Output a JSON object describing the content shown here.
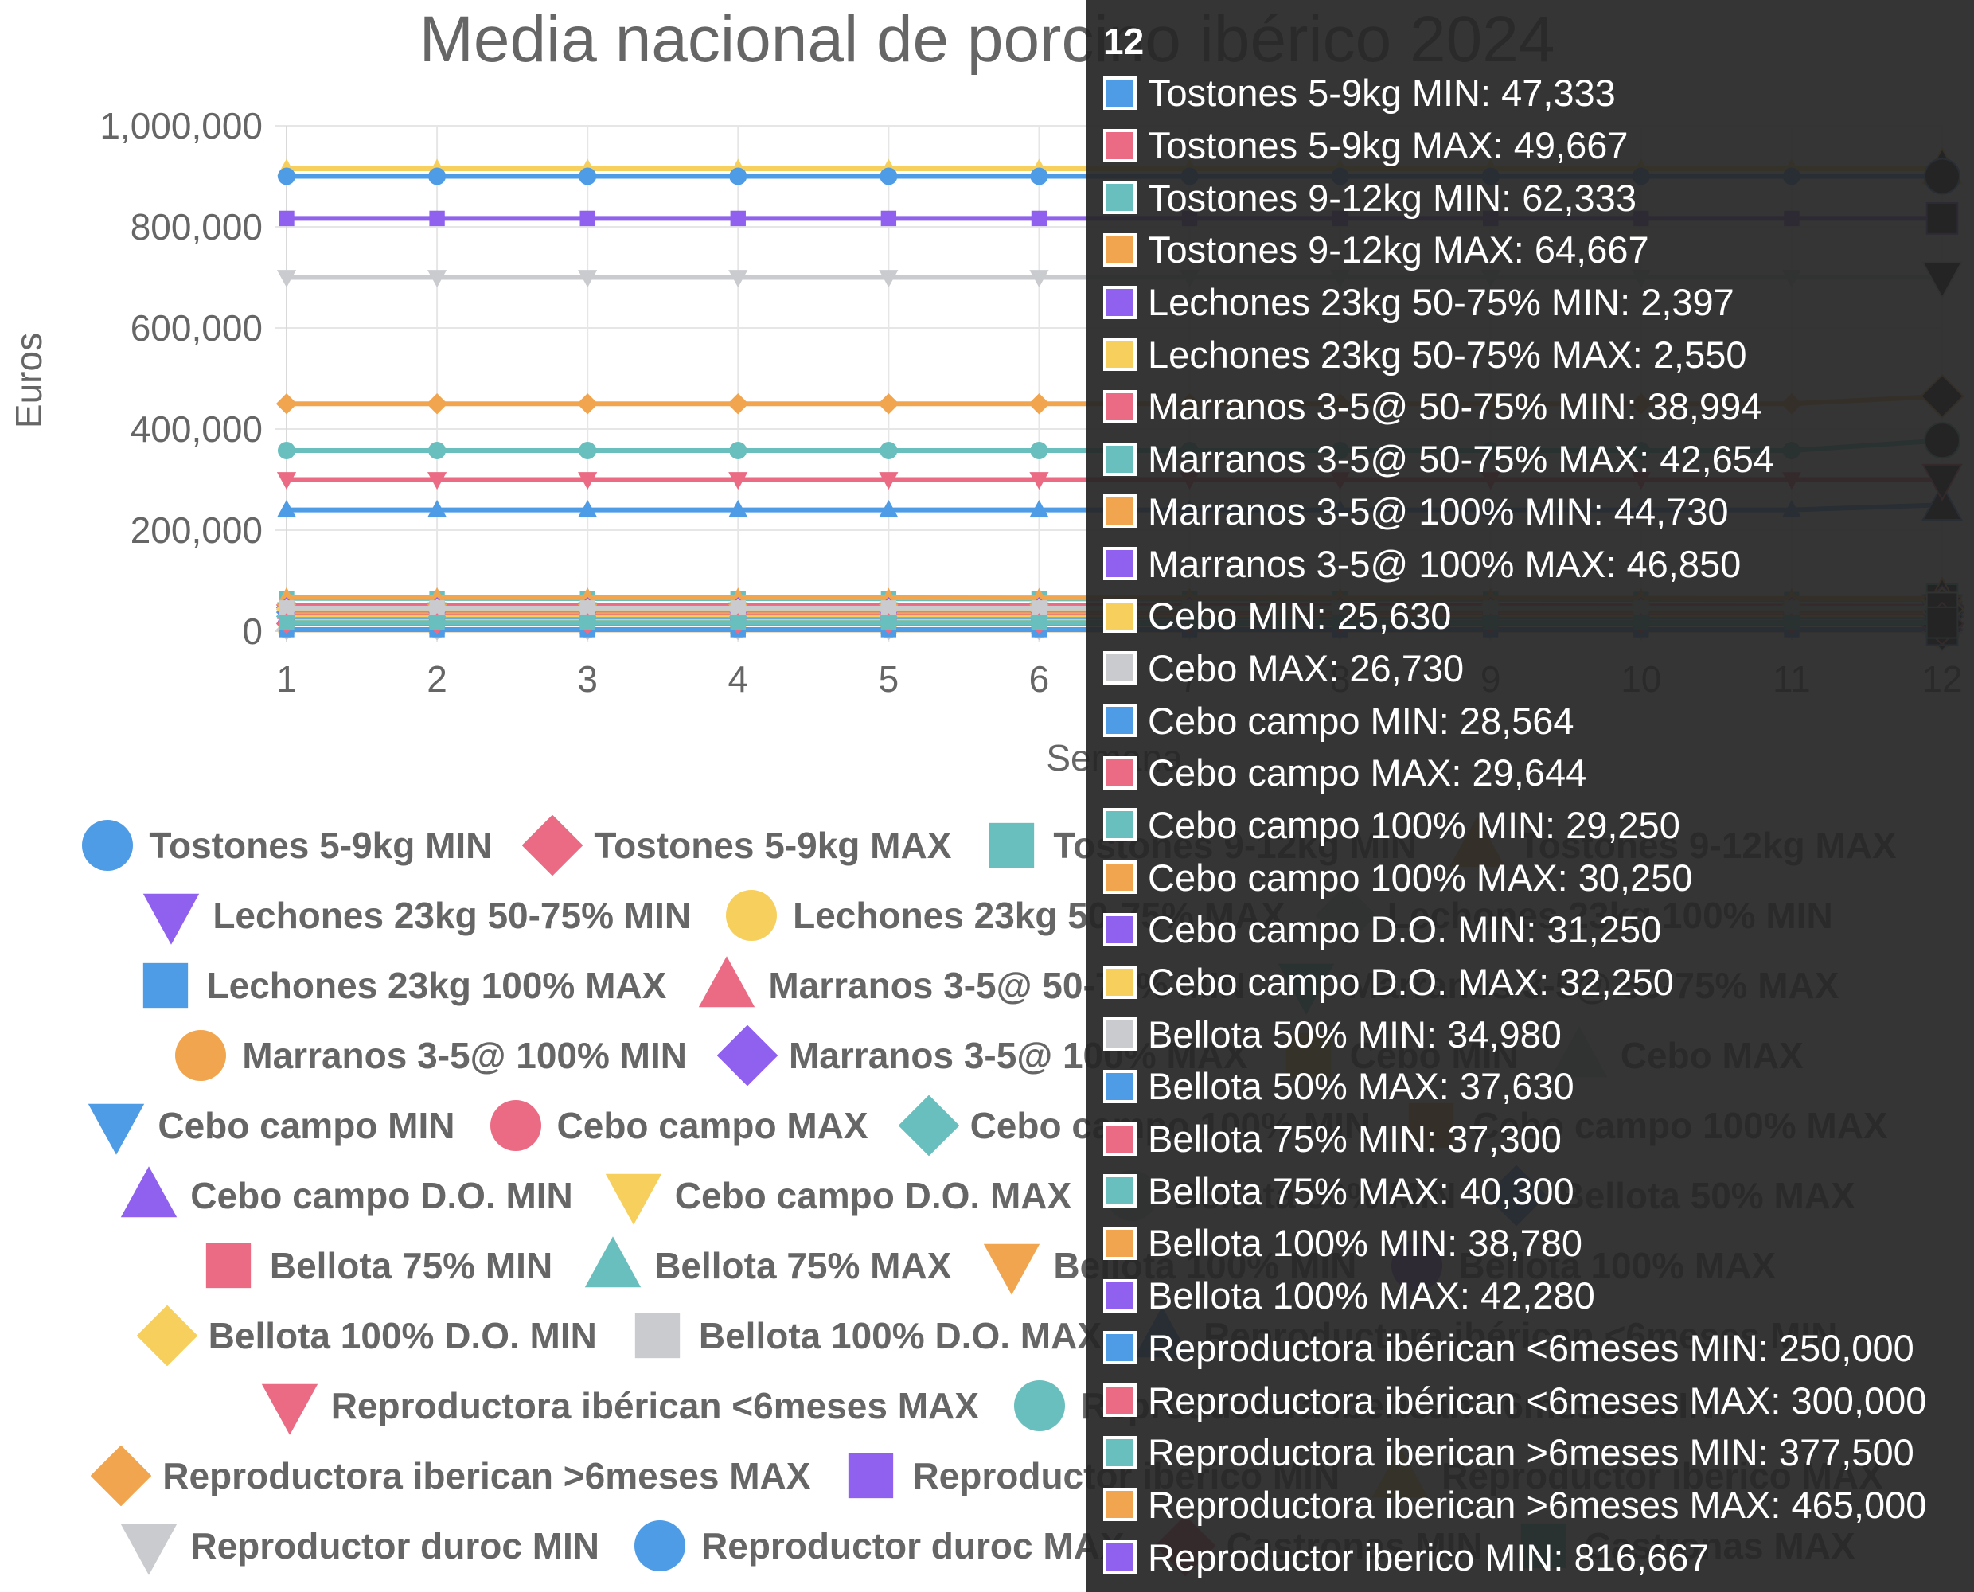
{
  "chart_data": {
    "type": "line",
    "title": "Media nacional de porcino ibérico 2024",
    "xlabel": "Semana",
    "ylabel": "Euros",
    "x": [
      1,
      2,
      3,
      4,
      5,
      6,
      7,
      8,
      9,
      10,
      11,
      12
    ],
    "xticks": [
      "1",
      "2",
      "3",
      "4",
      "5",
      "6",
      "7",
      "8",
      "9",
      "10",
      "11",
      "12"
    ],
    "ylim": [
      0,
      1000000
    ],
    "yticks": [
      "0",
      "200,000",
      "400,000",
      "600,000",
      "800,000",
      "1,000,000"
    ],
    "grid": true,
    "legend_position": "bottom",
    "series": [
      {
        "name": "Tostones 5-9kg MIN",
        "color": "#4E9BE6",
        "marker": "circle",
        "values": [
          50000,
          49800,
          49600,
          49400,
          49200,
          49000,
          48800,
          48600,
          48300,
          48000,
          47700,
          47333
        ]
      },
      {
        "name": "Tostones 5-9kg MAX",
        "color": "#EB6B84",
        "marker": "rectRot",
        "values": [
          52000,
          51800,
          51600,
          51400,
          51200,
          51000,
          50800,
          50600,
          50400,
          50200,
          49900,
          49667
        ]
      },
      {
        "name": "Tostones 9-12kg MIN",
        "color": "#69BFBE",
        "marker": "rect",
        "values": [
          65000,
          64800,
          64600,
          64400,
          64200,
          64000,
          63800,
          63500,
          63200,
          62900,
          62600,
          62333
        ]
      },
      {
        "name": "Tostones 9-12kg MAX",
        "color": "#F2A54F",
        "marker": "triangle",
        "values": [
          67000,
          66800,
          66600,
          66400,
          66200,
          66000,
          65800,
          65600,
          65400,
          65100,
          64900,
          64667
        ]
      },
      {
        "name": "Lechones 23kg 50-75% MIN",
        "color": "#8F61EE",
        "marker": "triangleDown",
        "values": [
          2397,
          2397,
          2397,
          2397,
          2397,
          2397,
          2397,
          2397,
          2397,
          2397,
          2397,
          2397
        ]
      },
      {
        "name": "Lechones 23kg 50-75% MAX",
        "color": "#F7CF5C",
        "marker": "circle",
        "values": [
          2550,
          2550,
          2550,
          2550,
          2550,
          2550,
          2550,
          2550,
          2550,
          2550,
          2550,
          2550
        ]
      },
      {
        "name": "Lechones 23kg 100% MIN",
        "color": "#C9CBCF",
        "marker": "rectRot",
        "values": [
          3000,
          3000,
          3000,
          3000,
          3000,
          3000,
          3000,
          3000,
          3000,
          3000,
          3000,
          3000
        ]
      },
      {
        "name": "Lechones 23kg 100% MAX",
        "color": "#4E9BE6",
        "marker": "rect",
        "values": [
          3200,
          3200,
          3200,
          3200,
          3200,
          3200,
          3200,
          3200,
          3200,
          3200,
          3200,
          3200
        ]
      },
      {
        "name": "Marranos 3-5@ 50-75% MIN",
        "color": "#EB6B84",
        "marker": "triangle",
        "values": [
          38994,
          38994,
          38994,
          38994,
          38994,
          38994,
          38994,
          38994,
          38994,
          38994,
          38994,
          38994
        ]
      },
      {
        "name": "Marranos 3-5@ 50-75% MAX",
        "color": "#69BFBE",
        "marker": "triangleDown",
        "values": [
          42654,
          42654,
          42654,
          42654,
          42654,
          42654,
          42654,
          42654,
          42654,
          42654,
          42654,
          42654
        ]
      },
      {
        "name": "Marranos 3-5@ 100% MIN",
        "color": "#F2A54F",
        "marker": "circle",
        "values": [
          44730,
          44730,
          44730,
          44730,
          44730,
          44730,
          44730,
          44730,
          44730,
          44730,
          44730,
          44730
        ]
      },
      {
        "name": "Marranos 3-5@ 100% MAX",
        "color": "#8F61EE",
        "marker": "rectRot",
        "values": [
          46850,
          46850,
          46850,
          46850,
          46850,
          46850,
          46850,
          46850,
          46850,
          46850,
          46850,
          46850
        ]
      },
      {
        "name": "Cebo MIN",
        "color": "#F7CF5C",
        "marker": "rect",
        "values": [
          25630,
          25630,
          25630,
          25630,
          25630,
          25630,
          25630,
          25630,
          25630,
          25630,
          25630,
          25630
        ]
      },
      {
        "name": "Cebo MAX",
        "color": "#C9CBCF",
        "marker": "triangle",
        "values": [
          26730,
          26730,
          26730,
          26730,
          26730,
          26730,
          26730,
          26730,
          26730,
          26730,
          26730,
          26730
        ]
      },
      {
        "name": "Cebo campo MIN",
        "color": "#4E9BE6",
        "marker": "triangleDown",
        "values": [
          28564,
          28564,
          28564,
          28564,
          28564,
          28564,
          28564,
          28564,
          28564,
          28564,
          28564,
          28564
        ]
      },
      {
        "name": "Cebo campo MAX",
        "color": "#EB6B84",
        "marker": "circle",
        "values": [
          29644,
          29644,
          29644,
          29644,
          29644,
          29644,
          29644,
          29644,
          29644,
          29644,
          29644,
          29644
        ]
      },
      {
        "name": "Cebo campo 100% MIN",
        "color": "#69BFBE",
        "marker": "rectRot",
        "values": [
          29250,
          29250,
          29250,
          29250,
          29250,
          29250,
          29250,
          29250,
          29250,
          29250,
          29250,
          29250
        ]
      },
      {
        "name": "Cebo campo 100% MAX",
        "color": "#F2A54F",
        "marker": "rect",
        "values": [
          30250,
          30250,
          30250,
          30250,
          30250,
          30250,
          30250,
          30250,
          30250,
          30250,
          30250,
          30250
        ]
      },
      {
        "name": "Cebo campo D.O. MIN",
        "color": "#8F61EE",
        "marker": "triangle",
        "values": [
          31250,
          31250,
          31250,
          31250,
          31250,
          31250,
          31250,
          31250,
          31250,
          31250,
          31250,
          31250
        ]
      },
      {
        "name": "Cebo campo D.O. MAX",
        "color": "#F7CF5C",
        "marker": "triangleDown",
        "values": [
          32250,
          32250,
          32250,
          32250,
          32250,
          32250,
          32250,
          32250,
          32250,
          32250,
          32250,
          32250
        ]
      },
      {
        "name": "Bellota 50% MIN",
        "color": "#C9CBCF",
        "marker": "circle",
        "values": [
          34980,
          34980,
          34980,
          34980,
          34980,
          34980,
          34980,
          34980,
          34980,
          34980,
          34980,
          34980
        ]
      },
      {
        "name": "Bellota 50% MAX",
        "color": "#4E9BE6",
        "marker": "rectRot",
        "values": [
          37630,
          37630,
          37630,
          37630,
          37630,
          37630,
          37630,
          37630,
          37630,
          37630,
          37630,
          37630
        ]
      },
      {
        "name": "Bellota 75% MIN",
        "color": "#EB6B84",
        "marker": "rect",
        "values": [
          37300,
          37300,
          37300,
          37300,
          37300,
          37300,
          37300,
          37300,
          37300,
          37300,
          37300,
          37300
        ]
      },
      {
        "name": "Bellota 75% MAX",
        "color": "#69BFBE",
        "marker": "triangle",
        "values": [
          40300,
          40300,
          40300,
          40300,
          40300,
          40300,
          40300,
          40300,
          40300,
          40300,
          40300,
          40300
        ]
      },
      {
        "name": "Bellota 100% MIN",
        "color": "#F2A54F",
        "marker": "triangleDown",
        "values": [
          38780,
          38780,
          38780,
          38780,
          38780,
          38780,
          38780,
          38780,
          38780,
          38780,
          38780,
          38780
        ]
      },
      {
        "name": "Bellota 100% MAX",
        "color": "#8F61EE",
        "marker": "circle",
        "values": [
          42280,
          42280,
          42280,
          42280,
          42280,
          42280,
          42280,
          42280,
          42280,
          42280,
          42280,
          42280
        ]
      },
      {
        "name": "Bellota 100% D.O. MIN",
        "color": "#F7CF5C",
        "marker": "rectRot",
        "values": [
          43500,
          43500,
          43500,
          43500,
          43500,
          43500,
          43500,
          43500,
          43500,
          43500,
          43500,
          43500
        ]
      },
      {
        "name": "Bellota 100% D.O. MAX",
        "color": "#C9CBCF",
        "marker": "rect",
        "values": [
          46000,
          46000,
          46000,
          46000,
          46000,
          46000,
          46000,
          46000,
          46000,
          46000,
          46000,
          46000
        ]
      },
      {
        "name": "Reproductora ibérican  <6meses MIN",
        "color": "#4E9BE6",
        "marker": "triangle",
        "values": [
          240000,
          240000,
          240000,
          240000,
          240000,
          240000,
          240000,
          240000,
          240000,
          240000,
          240000,
          250000
        ]
      },
      {
        "name": "Reproductora ibérican  <6meses MAX",
        "color": "#EB6B84",
        "marker": "triangleDown",
        "values": [
          300000,
          300000,
          300000,
          300000,
          300000,
          300000,
          300000,
          300000,
          300000,
          300000,
          300000,
          300000
        ]
      },
      {
        "name": "Reproductora iberican  >6meses MIN",
        "color": "#69BFBE",
        "marker": "circle",
        "values": [
          357500,
          357500,
          357500,
          357500,
          357500,
          357500,
          357500,
          357500,
          357500,
          357500,
          357500,
          377500
        ]
      },
      {
        "name": "Reproductora iberican  >6meses MAX",
        "color": "#F2A54F",
        "marker": "rectRot",
        "values": [
          450000,
          450000,
          450000,
          450000,
          450000,
          450000,
          450000,
          450000,
          450000,
          450000,
          450000,
          465000
        ]
      },
      {
        "name": "Reproductor iberico MIN",
        "color": "#8F61EE",
        "marker": "rect",
        "values": [
          816667,
          816667,
          816667,
          816667,
          816667,
          816667,
          816667,
          816667,
          816667,
          816667,
          816667,
          816667
        ]
      },
      {
        "name": "Reproductor iberico MAX",
        "color": "#F7CF5C",
        "marker": "triangle",
        "values": [
          915000,
          915000,
          915000,
          915000,
          915000,
          915000,
          915000,
          915000,
          915000,
          915000,
          915000,
          915000
        ]
      },
      {
        "name": "Reproductor duroc MIN",
        "color": "#C9CBCF",
        "marker": "triangleDown",
        "values": [
          700000,
          700000,
          700000,
          700000,
          700000,
          700000,
          700000,
          700000,
          700000,
          700000,
          700000,
          700000
        ]
      },
      {
        "name": "Reproductor duroc MAX",
        "color": "#4E9BE6",
        "marker": "circle",
        "values": [
          900000,
          900000,
          900000,
          900000,
          900000,
          900000,
          900000,
          900000,
          900000,
          900000,
          900000,
          900000
        ]
      },
      {
        "name": "Castronas MIN",
        "color": "#EB6B84",
        "marker": "rectRot",
        "values": [
          15000,
          15000,
          15000,
          15000,
          15000,
          15000,
          15000,
          15000,
          15000,
          15000,
          15000,
          15000
        ]
      },
      {
        "name": "Castronas MAX",
        "color": "#69BFBE",
        "marker": "rect",
        "values": [
          17000,
          17000,
          17000,
          17000,
          17000,
          17000,
          17000,
          17000,
          17000,
          17000,
          17000,
          17000
        ]
      }
    ]
  },
  "legend_rows": [
    [
      0,
      1,
      2,
      3
    ],
    [
      4,
      5,
      6
    ],
    [
      7,
      8,
      9
    ],
    [
      10,
      11,
      12,
      13
    ],
    [
      14,
      15,
      16,
      17
    ],
    [
      18,
      19,
      20,
      21
    ],
    [
      22,
      23,
      24,
      25
    ],
    [
      26,
      27,
      28
    ],
    [
      29,
      30
    ],
    [
      31,
      32,
      33
    ],
    [
      34,
      35,
      36,
      37
    ]
  ],
  "tooltip": {
    "title": "12",
    "rows": [
      {
        "text": "Tostones 5-9kg MIN: 47,333",
        "color": "#4E9BE6"
      },
      {
        "text": "Tostones 5-9kg MAX: 49,667",
        "color": "#EB6B84"
      },
      {
        "text": "Tostones 9-12kg MIN: 62,333",
        "color": "#69BFBE"
      },
      {
        "text": "Tostones 9-12kg MAX: 64,667",
        "color": "#F2A54F"
      },
      {
        "text": "Lechones 23kg 50-75% MIN: 2,397",
        "color": "#8F61EE"
      },
      {
        "text": "Lechones 23kg 50-75% MAX: 2,550",
        "color": "#F7CF5C"
      },
      {
        "text": "Marranos 3-5@ 50-75% MIN: 38,994",
        "color": "#EB6B84"
      },
      {
        "text": "Marranos 3-5@ 50-75% MAX: 42,654",
        "color": "#69BFBE"
      },
      {
        "text": "Marranos 3-5@ 100% MIN: 44,730",
        "color": "#F2A54F"
      },
      {
        "text": "Marranos 3-5@ 100% MAX: 46,850",
        "color": "#8F61EE"
      },
      {
        "text": "Cebo MIN: 25,630",
        "color": "#F7CF5C"
      },
      {
        "text": "Cebo MAX: 26,730",
        "color": "#C9CBCF"
      },
      {
        "text": "Cebo campo MIN: 28,564",
        "color": "#4E9BE6"
      },
      {
        "text": "Cebo campo MAX: 29,644",
        "color": "#EB6B84"
      },
      {
        "text": "Cebo campo 100% MIN: 29,250",
        "color": "#69BFBE"
      },
      {
        "text": "Cebo campo 100% MAX: 30,250",
        "color": "#F2A54F"
      },
      {
        "text": "Cebo campo D.O. MIN: 31,250",
        "color": "#8F61EE"
      },
      {
        "text": "Cebo campo D.O. MAX: 32,250",
        "color": "#F7CF5C"
      },
      {
        "text": "Bellota 50% MIN: 34,980",
        "color": "#C9CBCF"
      },
      {
        "text": "Bellota 50% MAX: 37,630",
        "color": "#4E9BE6"
      },
      {
        "text": "Bellota 75% MIN: 37,300",
        "color": "#EB6B84"
      },
      {
        "text": "Bellota 75% MAX: 40,300",
        "color": "#69BFBE"
      },
      {
        "text": "Bellota 100% MIN: 38,780",
        "color": "#F2A54F"
      },
      {
        "text": "Bellota 100% MAX: 42,280",
        "color": "#8F61EE"
      },
      {
        "text": "Reproductora ibérican  <6meses MIN: 250,000",
        "color": "#4E9BE6"
      },
      {
        "text": "Reproductora ibérican  <6meses MAX: 300,000",
        "color": "#EB6B84"
      },
      {
        "text": "Reproductora iberican  >6meses MIN: 377,500",
        "color": "#69BFBE"
      },
      {
        "text": "Reproductora iberican  >6meses MAX: 465,000",
        "color": "#F2A54F"
      },
      {
        "text": "Reproductor iberico MIN: 816,667",
        "color": "#8F61EE"
      }
    ]
  }
}
